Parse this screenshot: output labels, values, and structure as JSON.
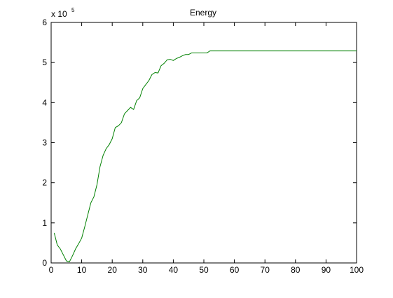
{
  "chart_data": {
    "type": "line",
    "title": "Energy",
    "xlabel": "",
    "ylabel": "",
    "y_multiplier_base": "x 10",
    "y_multiplier_exponent": "5",
    "xlim": [
      0,
      100
    ],
    "ylim": [
      0,
      6
    ],
    "x_ticks": [
      0,
      10,
      20,
      30,
      40,
      50,
      60,
      70,
      80,
      90,
      100
    ],
    "y_ticks": [
      0,
      1,
      2,
      3,
      4,
      5,
      6
    ],
    "grid": false,
    "line_color": "#008000",
    "series": [
      {
        "x": [
          1,
          2,
          3,
          4,
          5,
          6,
          7,
          8,
          9,
          10,
          11,
          12,
          13,
          14,
          15,
          16,
          17,
          18,
          19,
          20,
          21,
          22,
          23,
          24,
          25,
          26,
          27,
          28,
          29,
          30,
          31,
          32,
          33,
          34,
          35,
          36,
          37,
          38,
          39,
          40,
          41,
          42,
          43,
          44,
          45,
          46,
          47,
          48,
          49,
          50,
          51,
          52,
          53,
          60,
          70,
          80,
          90,
          100
        ],
        "values": [
          0.75,
          0.45,
          0.35,
          0.2,
          0.05,
          0.03,
          0.18,
          0.35,
          0.48,
          0.62,
          0.9,
          1.2,
          1.5,
          1.65,
          1.95,
          2.4,
          2.68,
          2.85,
          2.95,
          3.1,
          3.38,
          3.42,
          3.5,
          3.72,
          3.8,
          3.88,
          3.83,
          4.05,
          4.12,
          4.35,
          4.45,
          4.55,
          4.7,
          4.75,
          4.74,
          4.92,
          4.98,
          5.07,
          5.08,
          5.05,
          5.1,
          5.13,
          5.17,
          5.2,
          5.2,
          5.24,
          5.24,
          5.24,
          5.24,
          5.24,
          5.24,
          5.29,
          5.29,
          5.29,
          5.29,
          5.29,
          5.29,
          5.29
        ]
      }
    ]
  }
}
